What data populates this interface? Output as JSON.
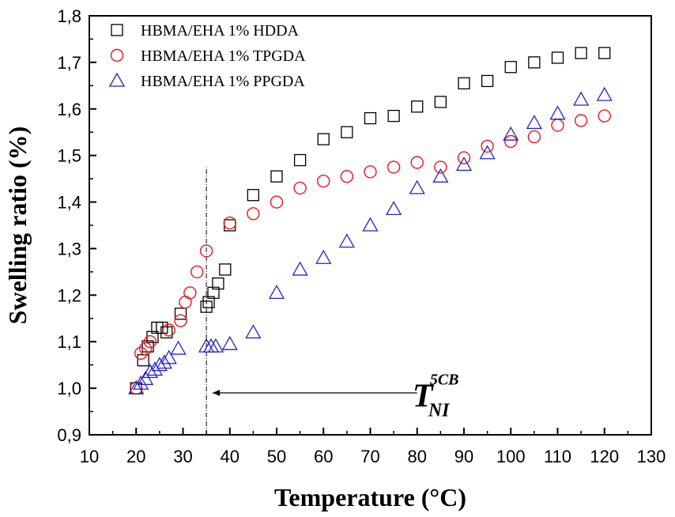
{
  "chart_data": {
    "type": "scatter",
    "title": "",
    "xlabel": "Temperature (°C)",
    "ylabel": "Swelling ratio (%)",
    "xlim": [
      10,
      130
    ],
    "ylim": [
      0.9,
      1.8
    ],
    "xticks": [
      10,
      20,
      30,
      40,
      50,
      60,
      70,
      80,
      90,
      100,
      110,
      120,
      130
    ],
    "yticks": [
      0.9,
      1.0,
      1.1,
      1.2,
      1.3,
      1.4,
      1.5,
      1.6,
      1.7,
      1.8
    ],
    "ytick_labels": [
      "0,9",
      "1,0",
      "1,1",
      "1,2",
      "1,3",
      "1,4",
      "1,5",
      "1,6",
      "1,7",
      "1,8"
    ],
    "legend_position": "top-left",
    "series": [
      {
        "name": "HBMA/EHA 1% HDDA",
        "marker": "square",
        "color": "#000000",
        "points": [
          [
            20,
            1.0
          ],
          [
            21.5,
            1.06
          ],
          [
            22.5,
            1.09
          ],
          [
            23.5,
            1.11
          ],
          [
            24.5,
            1.13
          ],
          [
            25.5,
            1.13
          ],
          [
            26.5,
            1.12
          ],
          [
            29.5,
            1.16
          ],
          [
            35,
            1.175
          ],
          [
            35.5,
            1.185
          ],
          [
            36.5,
            1.205
          ],
          [
            37.5,
            1.225
          ],
          [
            39,
            1.255
          ],
          [
            40,
            1.35
          ],
          [
            45,
            1.415
          ],
          [
            50,
            1.455
          ],
          [
            55,
            1.49
          ],
          [
            60,
            1.535
          ],
          [
            65,
            1.55
          ],
          [
            70,
            1.58
          ],
          [
            75,
            1.585
          ],
          [
            80,
            1.605
          ],
          [
            85,
            1.615
          ],
          [
            90,
            1.655
          ],
          [
            95,
            1.66
          ],
          [
            100,
            1.69
          ],
          [
            105,
            1.7
          ],
          [
            110,
            1.71
          ],
          [
            115,
            1.72
          ],
          [
            120,
            1.72
          ]
        ]
      },
      {
        "name": "HBMA/EHA 1% TPGDA",
        "marker": "circle",
        "color": "#e8151b",
        "points": [
          [
            20,
            1.0
          ],
          [
            21,
            1.075
          ],
          [
            22,
            1.085
          ],
          [
            23,
            1.1
          ],
          [
            27,
            1.125
          ],
          [
            29.5,
            1.145
          ],
          [
            30.5,
            1.185
          ],
          [
            31.5,
            1.205
          ],
          [
            33,
            1.25
          ],
          [
            35,
            1.295
          ],
          [
            40,
            1.355
          ],
          [
            45,
            1.375
          ],
          [
            50,
            1.4
          ],
          [
            55,
            1.43
          ],
          [
            60,
            1.445
          ],
          [
            65,
            1.455
          ],
          [
            70,
            1.465
          ],
          [
            75,
            1.475
          ],
          [
            80,
            1.485
          ],
          [
            85,
            1.475
          ],
          [
            90,
            1.495
          ],
          [
            95,
            1.52
          ],
          [
            100,
            1.53
          ],
          [
            105,
            1.54
          ],
          [
            110,
            1.565
          ],
          [
            115,
            1.575
          ],
          [
            120,
            1.585
          ]
        ]
      },
      {
        "name": "HBMA/EHA 1% PPGDA",
        "marker": "triangle",
        "color": "#2323c8",
        "points": [
          [
            20,
            1.0
          ],
          [
            21,
            1.01
          ],
          [
            22,
            1.02
          ],
          [
            23,
            1.035
          ],
          [
            24,
            1.04
          ],
          [
            25,
            1.05
          ],
          [
            26,
            1.055
          ],
          [
            27,
            1.065
          ],
          [
            29,
            1.085
          ],
          [
            35,
            1.09
          ],
          [
            36,
            1.09
          ],
          [
            37,
            1.09
          ],
          [
            40,
            1.095
          ],
          [
            45,
            1.12
          ],
          [
            50,
            1.205
          ],
          [
            55,
            1.255
          ],
          [
            60,
            1.28
          ],
          [
            65,
            1.315
          ],
          [
            70,
            1.35
          ],
          [
            75,
            1.385
          ],
          [
            80,
            1.43
          ],
          [
            85,
            1.455
          ],
          [
            90,
            1.48
          ],
          [
            95,
            1.505
          ],
          [
            100,
            1.545
          ],
          [
            105,
            1.57
          ],
          [
            110,
            1.59
          ],
          [
            115,
            1.62
          ],
          [
            120,
            1.63
          ]
        ]
      }
    ],
    "reference_line": {
      "x": 35,
      "ymin": 0.9,
      "ymax": 1.475
    },
    "annotation": {
      "arrow_from_x": 80,
      "arrow_to_x": 36,
      "arrow_y": 0.99,
      "text_main": "T",
      "text_sup": "5CB",
      "text_sub": "NI",
      "text_x": 79,
      "text_y": 0.96
    }
  }
}
